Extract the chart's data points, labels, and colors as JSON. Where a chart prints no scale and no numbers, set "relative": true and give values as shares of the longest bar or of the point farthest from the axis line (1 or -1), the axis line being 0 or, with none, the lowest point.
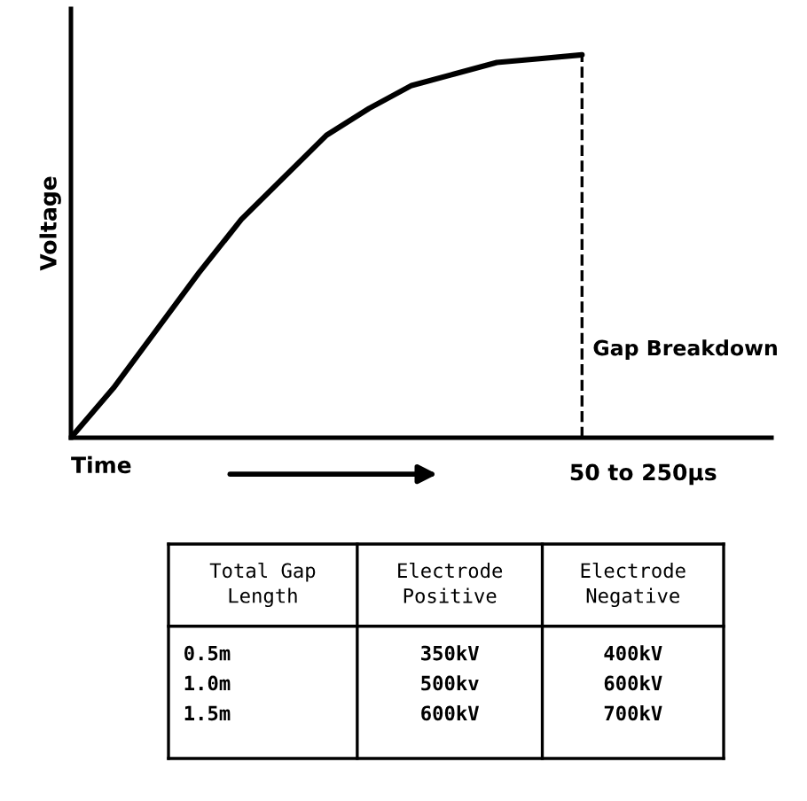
{
  "chart_data": [
    {
      "type": "line",
      "relative": true,
      "ylabel": "Voltage",
      "xlabel": "Time",
      "color": "#000000",
      "categories": [
        null,
        null,
        null,
        null,
        null,
        null,
        null,
        null,
        null,
        null,
        null,
        null,
        null,
        null,
        null,
        null,
        null
      ],
      "values": [
        0,
        0.13,
        0.28,
        0.43,
        0.57,
        0.68,
        0.79,
        0.86,
        0.92,
        0.95,
        0.98,
        0.99,
        1.0,
        null,
        null,
        null,
        null
      ],
      "annotations": [
        "Gap Breakdown",
        "50 to 250μs"
      ],
      "marker": "none",
      "line_style": "solid",
      "grid": false
    },
    {
      "type": "other",
      "categories": [
        "Total Gap\nLength",
        "Electrode\nPositive",
        "Electrode\nNegative"
      ],
      "cell_labels": [
        [
          "0.5m",
          "350kV",
          "400kV"
        ],
        [
          "1.0m",
          "500kv",
          "600kV"
        ],
        [
          "1.5m",
          "600kV",
          "700kV"
        ]
      ]
    }
  ]
}
